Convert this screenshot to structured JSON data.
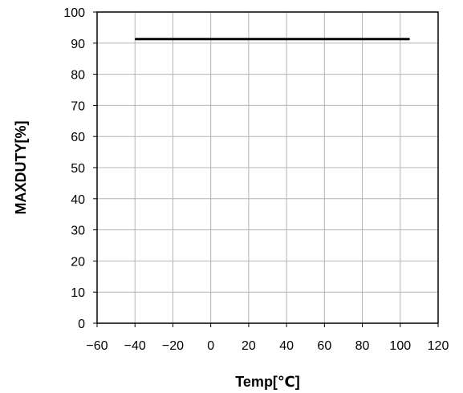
{
  "chart_data": {
    "type": "line",
    "title": "",
    "xlabel": "Temp[℃]",
    "ylabel": "MAXDUTY[%]",
    "xlim": [
      -60,
      120
    ],
    "ylim": [
      0,
      100
    ],
    "xticks": [
      -60,
      -40,
      -20,
      0,
      20,
      40,
      60,
      80,
      100,
      120
    ],
    "yticks": [
      0,
      10,
      20,
      30,
      40,
      50,
      60,
      70,
      80,
      90,
      100
    ],
    "grid": true,
    "legend": "none",
    "series": [
      {
        "x": [
          -40,
          105
        ],
        "y": [
          91.3,
          91.3
        ],
        "color": "#000000"
      }
    ]
  }
}
